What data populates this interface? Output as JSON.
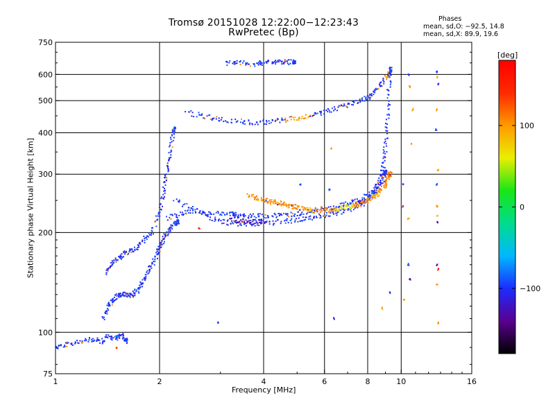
{
  "title_line1": "Tromsø 20151028 12:22:00−12:23:43",
  "title_line2": "RwPretec (Bp)",
  "phase_stats": {
    "heading": "Phases",
    "o_line": "mean, sd,O: −92.5, 14.8",
    "x_line": "mean, sd,X:  89.9, 19.6"
  },
  "colorbar": {
    "label": "[deg]",
    "ticks": [
      {
        "value": 100,
        "label": "100"
      },
      {
        "value": 0,
        "label": "0"
      },
      {
        "value": -100,
        "label": "−100"
      }
    ],
    "range": [
      -180,
      180
    ],
    "colors": [
      "#000000",
      "#5a0090",
      "#1c2cff",
      "#00b8ff",
      "#00dc8c",
      "#18e618",
      "#eaee00",
      "#ff9a00",
      "#ff2a00",
      "#ff0000"
    ]
  },
  "chart_data": {
    "type": "scatter",
    "xlabel": "Frequency [MHz]",
    "ylabel": "Stationary phase Virtual Height [km]",
    "x_scale": "log",
    "y_scale": "log",
    "xlim": [
      1,
      16
    ],
    "ylim": [
      75,
      750
    ],
    "x_ticks": [
      {
        "value": 1,
        "label": "1"
      },
      {
        "value": 2,
        "label": "2"
      },
      {
        "value": 4,
        "label": "4"
      },
      {
        "value": 6,
        "label": "6"
      },
      {
        "value": 8,
        "label": "8"
      },
      {
        "value": 10,
        "label": "10"
      },
      {
        "value": 16,
        "label": "16"
      }
    ],
    "y_ticks": [
      {
        "value": 75,
        "label": "75"
      },
      {
        "value": 100,
        "label": "100"
      },
      {
        "value": 200,
        "label": "200"
      },
      {
        "value": 300,
        "label": "300"
      },
      {
        "value": 400,
        "label": "400"
      },
      {
        "value": 500,
        "label": "500"
      },
      {
        "value": 600,
        "label": "600"
      },
      {
        "value": 750,
        "label": "750"
      }
    ],
    "x_grid": [
      2,
      4,
      6,
      8,
      10
    ],
    "y_grid": [
      100,
      200,
      300,
      400,
      500,
      600
    ],
    "grid": true,
    "color_by": "phase [deg]",
    "series": [
      {
        "points": [
          [
            1.0,
            90,
            -100
          ],
          [
            1.08,
            92,
            -100
          ],
          [
            1.18,
            94,
            -100
          ],
          [
            1.28,
            95,
            -100
          ],
          [
            1.36,
            94,
            -100
          ],
          [
            1.42,
            97,
            -100
          ],
          [
            1.5,
            96,
            -90
          ],
          [
            1.55,
            98,
            -100
          ],
          [
            1.6,
            94,
            -100
          ]
        ]
      },
      {
        "points": [
          [
            1.38,
            110,
            -100
          ],
          [
            1.42,
            120,
            -100
          ],
          [
            1.46,
            125,
            -100
          ],
          [
            1.5,
            128,
            -100
          ],
          [
            1.55,
            130,
            -100
          ],
          [
            1.6,
            130,
            -100
          ],
          [
            1.66,
            129,
            -100
          ],
          [
            1.72,
            133,
            -100
          ],
          [
            1.78,
            140,
            -100
          ],
          [
            1.84,
            150,
            -100
          ],
          [
            1.9,
            160,
            -100
          ],
          [
            1.96,
            170,
            -100
          ],
          [
            2.0,
            180,
            -100
          ],
          [
            2.05,
            190,
            -100
          ],
          [
            2.1,
            200,
            -100
          ],
          [
            2.18,
            210,
            -100
          ],
          [
            2.25,
            215,
            -100
          ]
        ]
      },
      {
        "points": [
          [
            1.4,
            150,
            -100
          ],
          [
            1.45,
            160,
            -100
          ],
          [
            1.5,
            165,
            -100
          ],
          [
            1.55,
            170,
            -100
          ],
          [
            1.62,
            175,
            -100
          ],
          [
            1.7,
            178,
            -100
          ],
          [
            1.8,
            190,
            -100
          ],
          [
            1.9,
            200,
            -100
          ],
          [
            2.0,
            230,
            -100
          ],
          [
            2.05,
            260,
            -100
          ],
          [
            2.08,
            290,
            -100
          ],
          [
            2.12,
            320,
            -100
          ],
          [
            2.16,
            360,
            -100
          ],
          [
            2.2,
            410,
            -90
          ]
        ]
      },
      {
        "points": [
          [
            2.1,
            220,
            -100
          ],
          [
            2.3,
            228,
            -100
          ],
          [
            2.5,
            232,
            -100
          ],
          [
            2.8,
            230,
            -100
          ],
          [
            3.1,
            228,
            -100
          ],
          [
            3.4,
            226,
            -100
          ],
          [
            3.8,
            225,
            -100
          ],
          [
            4.2,
            225,
            -100
          ],
          [
            4.6,
            226,
            -100
          ],
          [
            5.0,
            228,
            -100
          ],
          [
            5.5,
            232,
            -100
          ],
          [
            6.0,
            236,
            -100
          ],
          [
            6.5,
            240,
            -100
          ],
          [
            7.0,
            244,
            -100
          ],
          [
            7.5,
            250,
            -100
          ],
          [
            8.0,
            258,
            -100
          ],
          [
            8.4,
            270,
            -100
          ],
          [
            8.7,
            290,
            -100
          ],
          [
            8.9,
            320,
            -100
          ],
          [
            9.0,
            360,
            -100
          ],
          [
            9.1,
            420,
            -100
          ],
          [
            9.2,
            500,
            -100
          ],
          [
            9.25,
            600,
            -100
          ]
        ]
      },
      {
        "points": [
          [
            2.2,
            250,
            -100
          ],
          [
            2.5,
            235,
            -100
          ],
          [
            2.8,
            222,
            -100
          ],
          [
            3.1,
            215,
            -100
          ],
          [
            3.4,
            212,
            -100
          ],
          [
            3.8,
            212,
            -100
          ],
          [
            4.3,
            214,
            -100
          ],
          [
            4.8,
            217,
            -100
          ],
          [
            5.3,
            220,
            -100
          ],
          [
            5.8,
            224,
            -100
          ],
          [
            6.3,
            228,
            -100
          ],
          [
            6.8,
            232,
            -100
          ],
          [
            7.3,
            238,
            -100
          ],
          [
            7.8,
            246,
            -100
          ],
          [
            8.2,
            256,
            -100
          ],
          [
            8.5,
            268,
            -100
          ],
          [
            8.8,
            285,
            -100
          ],
          [
            9.0,
            305,
            -100
          ]
        ]
      },
      {
        "points": [
          [
            3.2,
            218,
            -130
          ],
          [
            3.5,
            216,
            -130
          ],
          [
            3.8,
            215,
            -120
          ],
          [
            4.1,
            217,
            -100
          ],
          [
            3.3,
            225,
            -100
          ]
        ]
      },
      {
        "points": [
          [
            3.6,
            258,
            100
          ],
          [
            3.8,
            255,
            100
          ],
          [
            4.0,
            250,
            110
          ],
          [
            4.2,
            248,
            100
          ],
          [
            4.4,
            246,
            110
          ],
          [
            4.6,
            243,
            100
          ],
          [
            4.8,
            240,
            110
          ],
          [
            5.0,
            238,
            100
          ],
          [
            5.3,
            236,
            90
          ],
          [
            5.6,
            232,
            110
          ],
          [
            6.0,
            232,
            100
          ],
          [
            6.4,
            234,
            80
          ],
          [
            6.8,
            238,
            60
          ],
          [
            7.2,
            240,
            100
          ],
          [
            7.6,
            244,
            110
          ],
          [
            8.0,
            250,
            100
          ],
          [
            8.3,
            256,
            90
          ],
          [
            8.6,
            264,
            100
          ],
          [
            8.9,
            276,
            110
          ],
          [
            9.1,
            290,
            100
          ],
          [
            9.3,
            300,
            110
          ]
        ]
      },
      {
        "points": [
          [
            2.4,
            460,
            -100
          ],
          [
            2.7,
            448,
            -100
          ],
          [
            3.0,
            440,
            -100
          ],
          [
            3.4,
            433,
            -100
          ],
          [
            3.8,
            430,
            -100
          ],
          [
            4.2,
            432,
            -100
          ],
          [
            4.6,
            438,
            100
          ],
          [
            5.0,
            444,
            100
          ],
          [
            5.5,
            452,
            -100
          ],
          [
            6.0,
            462,
            -100
          ],
          [
            6.6,
            475,
            -100
          ],
          [
            7.2,
            490,
            -100
          ],
          [
            7.8,
            503,
            -100
          ],
          [
            8.2,
            520,
            -100
          ],
          [
            8.6,
            545,
            -100
          ],
          [
            9.0,
            580,
            100
          ],
          [
            9.3,
            620,
            -100
          ]
        ]
      },
      {
        "points": [
          [
            3.1,
            648,
            -100
          ],
          [
            3.4,
            650,
            -100
          ],
          [
            3.7,
            645,
            -100
          ],
          [
            4.0,
            650,
            -100
          ],
          [
            4.3,
            652,
            -100
          ],
          [
            4.6,
            655,
            -100
          ],
          [
            4.9,
            652,
            -100
          ]
        ]
      },
      {
        "points": [
          [
            10.5,
            600,
            -100
          ],
          [
            10.6,
            550,
            100
          ],
          [
            12.7,
            610,
            -100
          ],
          [
            12.7,
            590,
            100
          ],
          [
            12.8,
            560,
            -100
          ],
          [
            10.7,
            370,
            100
          ],
          [
            10.8,
            470,
            100
          ],
          [
            12.7,
            470,
            100
          ],
          [
            12.6,
            410,
            -100
          ],
          [
            6.3,
            360,
            100
          ],
          [
            6.2,
            270,
            -100
          ],
          [
            10.1,
            280,
            -100
          ],
          [
            10.1,
            240,
            100
          ],
          [
            12.7,
            280,
            -100
          ],
          [
            12.7,
            240,
            100
          ],
          [
            10.5,
            220,
            100
          ],
          [
            12.7,
            225,
            100
          ],
          [
            12.7,
            215,
            -130
          ],
          [
            12.8,
            310,
            100
          ],
          [
            10.5,
            160,
            -100
          ],
          [
            10.6,
            145,
            -130
          ],
          [
            12.7,
            160,
            -130
          ],
          [
            12.8,
            155,
            160
          ],
          [
            12.7,
            140,
            100
          ],
          [
            10.2,
            125,
            100
          ],
          [
            12.8,
            107,
            100
          ],
          [
            9.3,
            132,
            -100
          ],
          [
            8.8,
            118,
            100
          ],
          [
            6.4,
            110,
            -100
          ],
          [
            2.95,
            107,
            -100
          ],
          [
            4.6,
            660,
            150
          ],
          [
            5.1,
            280,
            -100
          ],
          [
            2.6,
            205,
            160
          ],
          [
            1.5,
            90,
            120
          ]
        ]
      }
    ]
  }
}
